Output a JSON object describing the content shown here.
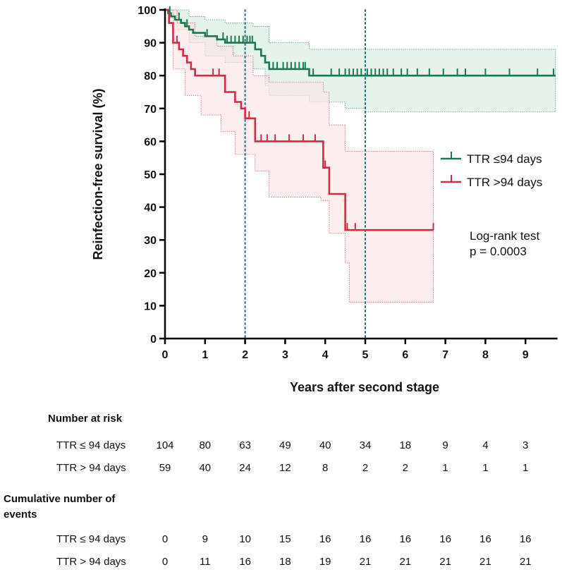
{
  "chart_data": {
    "type": "line",
    "subtype": "kaplan-meier",
    "xlabel": "Years after second stage",
    "ylabel": "Reinfection-free survival (%)",
    "xlim": [
      0,
      9.8
    ],
    "ylim": [
      0,
      100
    ],
    "x_ticks": [
      "0",
      "1",
      "2",
      "3",
      "4",
      "5",
      "6",
      "7",
      "8",
      "9"
    ],
    "y_ticks": [
      "0",
      "10",
      "20",
      "30",
      "40",
      "50",
      "60",
      "70",
      "80",
      "90",
      "100"
    ],
    "reference_lines_x": [
      2,
      5
    ],
    "legend_position": "right",
    "series": [
      {
        "name": "TTR ≤94 days",
        "color": "#1a7a4c",
        "band_color": "#d9ece3",
        "steps": [
          [
            0,
            100
          ],
          [
            0.08,
            99
          ],
          [
            0.15,
            98
          ],
          [
            0.25,
            97
          ],
          [
            0.4,
            96
          ],
          [
            0.5,
            95
          ],
          [
            0.6,
            94
          ],
          [
            0.7,
            93
          ],
          [
            1.0,
            92
          ],
          [
            1.3,
            91
          ],
          [
            1.5,
            90
          ],
          [
            2.25,
            88
          ],
          [
            2.4,
            86
          ],
          [
            2.5,
            84
          ],
          [
            2.6,
            82
          ],
          [
            3.6,
            80
          ],
          [
            9.75,
            80
          ]
        ],
        "lower": [
          [
            0,
            100
          ],
          [
            0.3,
            94
          ],
          [
            0.6,
            90
          ],
          [
            1.0,
            86
          ],
          [
            1.5,
            84
          ],
          [
            2.2,
            82
          ],
          [
            2.5,
            77
          ],
          [
            2.6,
            74
          ],
          [
            3.6,
            72
          ],
          [
            4.5,
            70
          ],
          [
            5.0,
            69
          ],
          [
            9.75,
            69
          ]
        ],
        "upper": [
          [
            0,
            100
          ],
          [
            0.3,
            100
          ],
          [
            0.6,
            98
          ],
          [
            1.0,
            97
          ],
          [
            1.5,
            96
          ],
          [
            2.2,
            95
          ],
          [
            2.6,
            90
          ],
          [
            3.6,
            88
          ],
          [
            9.75,
            88
          ]
        ],
        "censors": [
          0.12,
          0.35,
          0.55,
          1.05,
          1.45,
          1.55,
          1.65,
          1.75,
          1.85,
          1.95,
          2.05,
          2.12,
          2.18,
          2.7,
          2.8,
          2.95,
          3.05,
          3.15,
          3.25,
          3.35,
          3.45,
          3.5,
          3.7,
          4.15,
          4.35,
          4.5,
          4.6,
          4.7,
          4.8,
          4.9,
          5.05,
          5.15,
          5.25,
          5.35,
          5.45,
          5.55,
          5.7,
          5.9,
          6.05,
          6.3,
          6.6,
          6.95,
          7.3,
          7.5,
          8.0,
          8.6,
          9.3,
          9.7
        ],
        "at_risk": [
          "104",
          "80",
          "63",
          "49",
          "40",
          "34",
          "18",
          "9",
          "4",
          "3"
        ],
        "cumulative_events": [
          "0",
          "9",
          "10",
          "15",
          "16",
          "16",
          "16",
          "16",
          "16",
          "16"
        ]
      },
      {
        "name": "TTR >94 days",
        "color": "#cc2e44",
        "band_color": "#fbe3e7",
        "steps": [
          [
            0,
            100
          ],
          [
            0.1,
            96
          ],
          [
            0.2,
            90
          ],
          [
            0.35,
            88
          ],
          [
            0.45,
            86
          ],
          [
            0.55,
            84
          ],
          [
            0.65,
            82
          ],
          [
            0.75,
            80
          ],
          [
            1.5,
            75
          ],
          [
            1.75,
            72
          ],
          [
            1.9,
            70
          ],
          [
            2.0,
            67
          ],
          [
            2.25,
            60
          ],
          [
            3.95,
            52
          ],
          [
            4.1,
            44
          ],
          [
            4.5,
            33
          ],
          [
            6.7,
            33
          ]
        ],
        "lower": [
          [
            0,
            100
          ],
          [
            0.2,
            82
          ],
          [
            0.5,
            74
          ],
          [
            0.9,
            68
          ],
          [
            1.4,
            63
          ],
          [
            1.75,
            56
          ],
          [
            2.25,
            51
          ],
          [
            2.6,
            43
          ],
          [
            3.9,
            42
          ],
          [
            4.1,
            32
          ],
          [
            4.5,
            23
          ],
          [
            4.6,
            11
          ],
          [
            6.7,
            11
          ]
        ],
        "upper": [
          [
            0,
            100
          ],
          [
            0.3,
            96
          ],
          [
            0.75,
            92
          ],
          [
            1.3,
            89
          ],
          [
            1.7,
            86
          ],
          [
            2.2,
            80
          ],
          [
            2.6,
            78
          ],
          [
            3.95,
            75
          ],
          [
            4.1,
            65
          ],
          [
            4.5,
            57
          ],
          [
            6.7,
            57
          ]
        ],
        "censors": [
          0.3,
          0.75,
          1.2,
          1.35,
          2.1,
          2.4,
          2.55,
          2.75,
          3.1,
          3.45,
          3.75,
          4.0,
          4.55,
          4.75,
          6.7
        ],
        "at_risk": [
          "59",
          "40",
          "24",
          "12",
          "8",
          "2",
          "2",
          "1",
          "1",
          "1"
        ],
        "cumulative_events": [
          "0",
          "11",
          "16",
          "18",
          "19",
          "21",
          "21",
          "21",
          "21",
          "21"
        ]
      }
    ],
    "annotation_test": "Log-rank test",
    "annotation_p": "p = 0.0003"
  },
  "risk_table": {
    "at_risk_title": "Number at risk",
    "events_title_line1": "Cumulative number of",
    "events_title_line2": "events",
    "group1_label": "TTR ≤ 94 days",
    "group2_label": "TTR > 94 days"
  }
}
